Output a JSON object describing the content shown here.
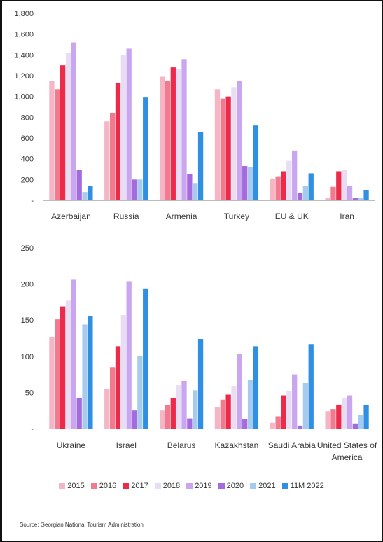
{
  "chart_data": [
    {
      "type": "bar",
      "categories": [
        "Azerbaijan",
        "Russia",
        "Armenia",
        "Turkey",
        "EU & UK",
        "Iran"
      ],
      "ylim": [
        0,
        1800
      ],
      "yticks": [
        "-",
        "200",
        "400",
        "600",
        "800",
        "1,000",
        "1,200",
        "1,400",
        "1,600",
        "1,800"
      ],
      "series": [
        {
          "name": "2015",
          "values": [
            1150,
            760,
            1190,
            1070,
            210,
            20
          ]
        },
        {
          "name": "2016",
          "values": [
            1070,
            840,
            1150,
            980,
            225,
            130
          ]
        },
        {
          "name": "2017",
          "values": [
            1300,
            1130,
            1280,
            1000,
            280,
            280
          ]
        },
        {
          "name": "2018",
          "values": [
            1420,
            1400,
            1260,
            1090,
            380,
            290
          ]
        },
        {
          "name": "2019",
          "values": [
            1520,
            1460,
            1360,
            1150,
            480,
            140
          ]
        },
        {
          "name": "2020",
          "values": [
            290,
            200,
            250,
            330,
            70,
            20
          ]
        },
        {
          "name": "2021",
          "values": [
            80,
            200,
            160,
            320,
            140,
            20
          ]
        },
        {
          "name": "11M 2022",
          "values": [
            140,
            990,
            660,
            720,
            260,
            95
          ]
        }
      ]
    },
    {
      "type": "bar",
      "categories": [
        "Ukraine",
        "Israel",
        "Belarus",
        "Kazakhstan",
        "Saudi Arabia",
        "United States of America"
      ],
      "ylim": [
        0,
        250
      ],
      "yticks": [
        "-",
        "50",
        "100",
        "150",
        "200",
        "250"
      ],
      "series": [
        {
          "name": "2015",
          "values": [
            127,
            55,
            25,
            30,
            8,
            24
          ]
        },
        {
          "name": "2016",
          "values": [
            151,
            85,
            32,
            40,
            17,
            27
          ]
        },
        {
          "name": "2017",
          "values": [
            169,
            114,
            42,
            47,
            46,
            33
          ]
        },
        {
          "name": "2018",
          "values": [
            177,
            157,
            60,
            59,
            52,
            42
          ]
        },
        {
          "name": "2019",
          "values": [
            206,
            204,
            66,
            103,
            75,
            46
          ]
        },
        {
          "name": "2020",
          "values": [
            42,
            25,
            14,
            13,
            4,
            7
          ]
        },
        {
          "name": "2021",
          "values": [
            144,
            100,
            53,
            67,
            63,
            19
          ]
        },
        {
          "name": "11M 2022",
          "values": [
            156,
            194,
            124,
            114,
            117,
            33
          ]
        }
      ]
    }
  ],
  "colors": [
    "#f5b5c4",
    "#f27a8c",
    "#ec2a4a",
    "#e8ddf5",
    "#c9a6ef",
    "#a46bdf",
    "#a7cbef",
    "#2f8fe2"
  ],
  "legend": [
    "2015",
    "2016",
    "2017",
    "2018",
    "2019",
    "2020",
    "2021",
    "11M 2022"
  ],
  "source": "Source: Georgian National Tourism Administration"
}
